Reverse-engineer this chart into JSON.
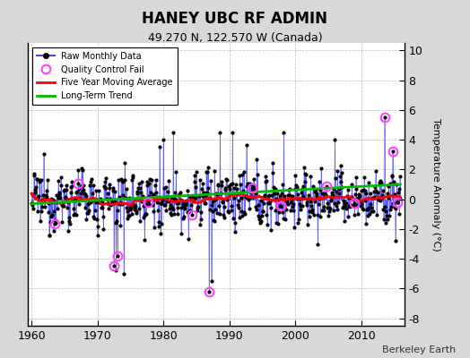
{
  "title": "HANEY UBC RF ADMIN",
  "subtitle": "49.270 N, 122.570 W (Canada)",
  "ylabel": "Temperature Anomaly (°C)",
  "watermark": "Berkeley Earth",
  "xlim": [
    1959.5,
    2016.5
  ],
  "ylim": [
    -8.5,
    10.5
  ],
  "yticks": [
    -8,
    -6,
    -4,
    -2,
    0,
    2,
    4,
    6,
    8,
    10
  ],
  "xticks": [
    1960,
    1970,
    1980,
    1990,
    2000,
    2010
  ],
  "bg_color": "#d8d8d8",
  "plot_bg_color": "#ffffff",
  "raw_line_color": "#4444ff",
  "raw_dot_color": "#000000",
  "qc_fail_color": "#ff44ff",
  "moving_avg_color": "#ff0000",
  "trend_color": "#00bb00",
  "seed": 12345,
  "n_years": 56,
  "start_year": 1960
}
